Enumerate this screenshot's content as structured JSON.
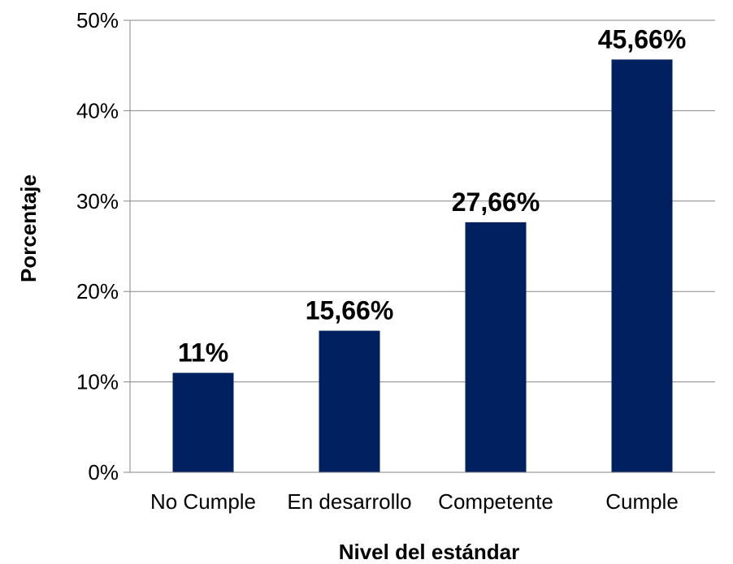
{
  "chart_data": {
    "type": "bar",
    "categories": [
      "No Cumple",
      "En desarrollo",
      "Competente",
      "Cumple"
    ],
    "values": [
      11,
      15.66,
      27.66,
      45.66
    ],
    "data_labels": [
      "11%",
      "15,66%",
      "27,66%",
      "45,66%"
    ],
    "title": "",
    "xlabel": "Nivel del estándar",
    "ylabel": "Porcentaje",
    "ylim": [
      0,
      50
    ],
    "yticks": [
      0,
      10,
      20,
      30,
      40,
      50
    ],
    "ytick_labels": [
      "0%",
      "10%",
      "20%",
      "30%",
      "40%",
      "50%"
    ],
    "grid": true,
    "legend": "none",
    "colors": {
      "bar": "#002060",
      "grid": "#868686"
    }
  }
}
